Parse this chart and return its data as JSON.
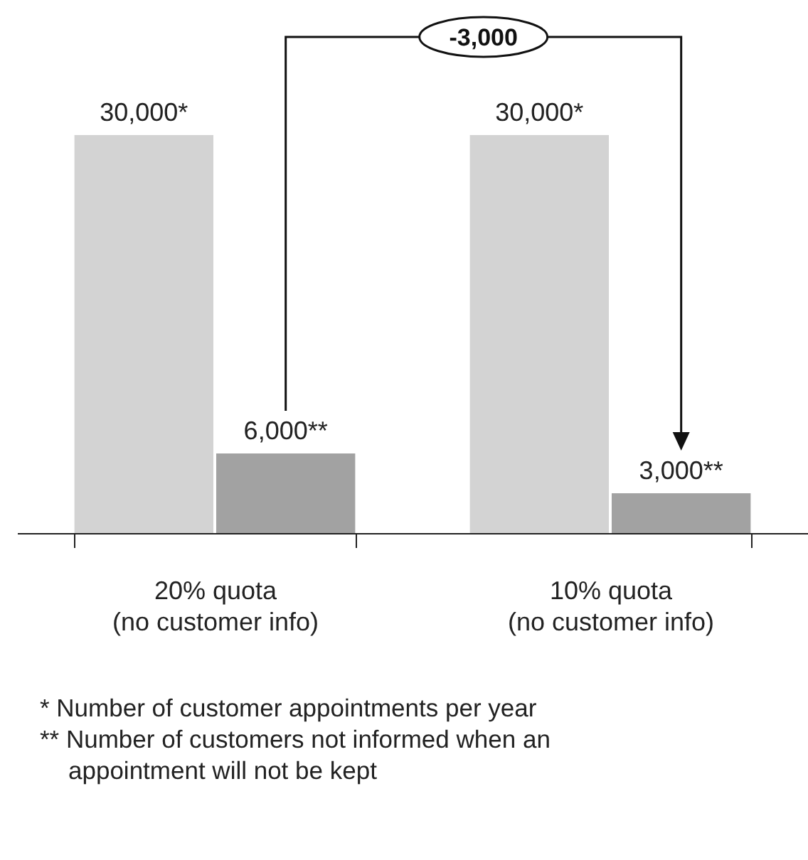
{
  "chart_data": {
    "type": "bar",
    "categories": [
      "20% quota\n(no customer info)",
      "10% quota\n(no customer info)"
    ],
    "series": [
      {
        "color": "#d3d3d3",
        "values": [
          30000,
          30000
        ],
        "value_labels": [
          "30,000*",
          "30,000*"
        ]
      },
      {
        "color": "#a2a2a2",
        "values": [
          6000,
          3000
        ],
        "value_labels": [
          "6,000**",
          "3,000**"
        ]
      }
    ],
    "tick_labels": "x",
    "grid": false,
    "legend": false,
    "annotations": [
      "-3,000",
      "* Number of customer appointments per year",
      "** Number of customers not informed when an appointment will not be kept"
    ]
  }
}
